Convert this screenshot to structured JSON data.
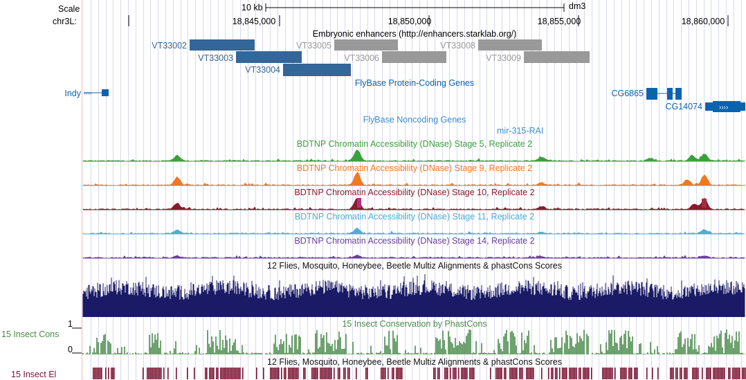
{
  "header": {
    "scale_label": "Scale",
    "chrom_label": "chr3L:",
    "scale_bar_text": "10 kb",
    "assembly": "dm3",
    "positions": [
      "18,845,000",
      "18,850,000",
      "18,855,000",
      "18,860,000"
    ]
  },
  "tracks": {
    "enhancers": {
      "title": "Embryonic enhancers (http://enhancers.starklab.org/)",
      "items": [
        "VT33002",
        "VT33003",
        "VT33004",
        "VT33005",
        "VT33006",
        "VT33008",
        "VT33009"
      ]
    },
    "flybase_coding": {
      "title": "FlyBase Protein-Coding Genes",
      "genes": [
        "Indy",
        "CG6865",
        "CG14074"
      ]
    },
    "flybase_noncoding": {
      "title": "FlyBase Noncoding Genes",
      "genes": [
        "mir-315-RAI"
      ]
    },
    "dnase": [
      {
        "title": "BDTNP Chromatin Accessibility (DNase) Stage 5, Replicate 2",
        "color": "#3aa23a"
      },
      {
        "title": "BDTNP Chromatin Accessibility (DNase) Stage 9, Replicate 2",
        "color": "#f07820"
      },
      {
        "title": "BDTNP Chromatin Accessibility (DNase) Stage 10, Replicate 2",
        "color": "#8b1a2b"
      },
      {
        "title": "BDTNP Chromatin Accessibility (DNase) Stage 11, Replicate 2",
        "color": "#4aaed8"
      },
      {
        "title": "BDTNP Chromatin Accessibility (DNase) Stage 14, Replicate 2",
        "color": "#6a3ea0"
      }
    ],
    "multiz": {
      "title": "12 Flies, Mosquito, Honeybee, Beetle Multiz Alignments & phastCons Scores"
    },
    "phastcons": {
      "title": "15 Insect Conservation by PhastCons",
      "side_label": "15 Insect Cons",
      "y_top": "1",
      "y_bottom": "0"
    },
    "elements": {
      "title": "12 Flies, Mosquito, Honeybee, Beetle Multiz Alignments & phastCons Scores",
      "side_label": "15 Insect El"
    }
  },
  "colors": {
    "enhancer_blue": "#336699",
    "enhancer_gray": "#999999",
    "gene_blue": "#0b63b0",
    "multiz_navy": "#1a1a66",
    "cons_green": "#4a8a4a",
    "elements_maroon": "#7a1030",
    "grid": "#d8d8f0"
  }
}
